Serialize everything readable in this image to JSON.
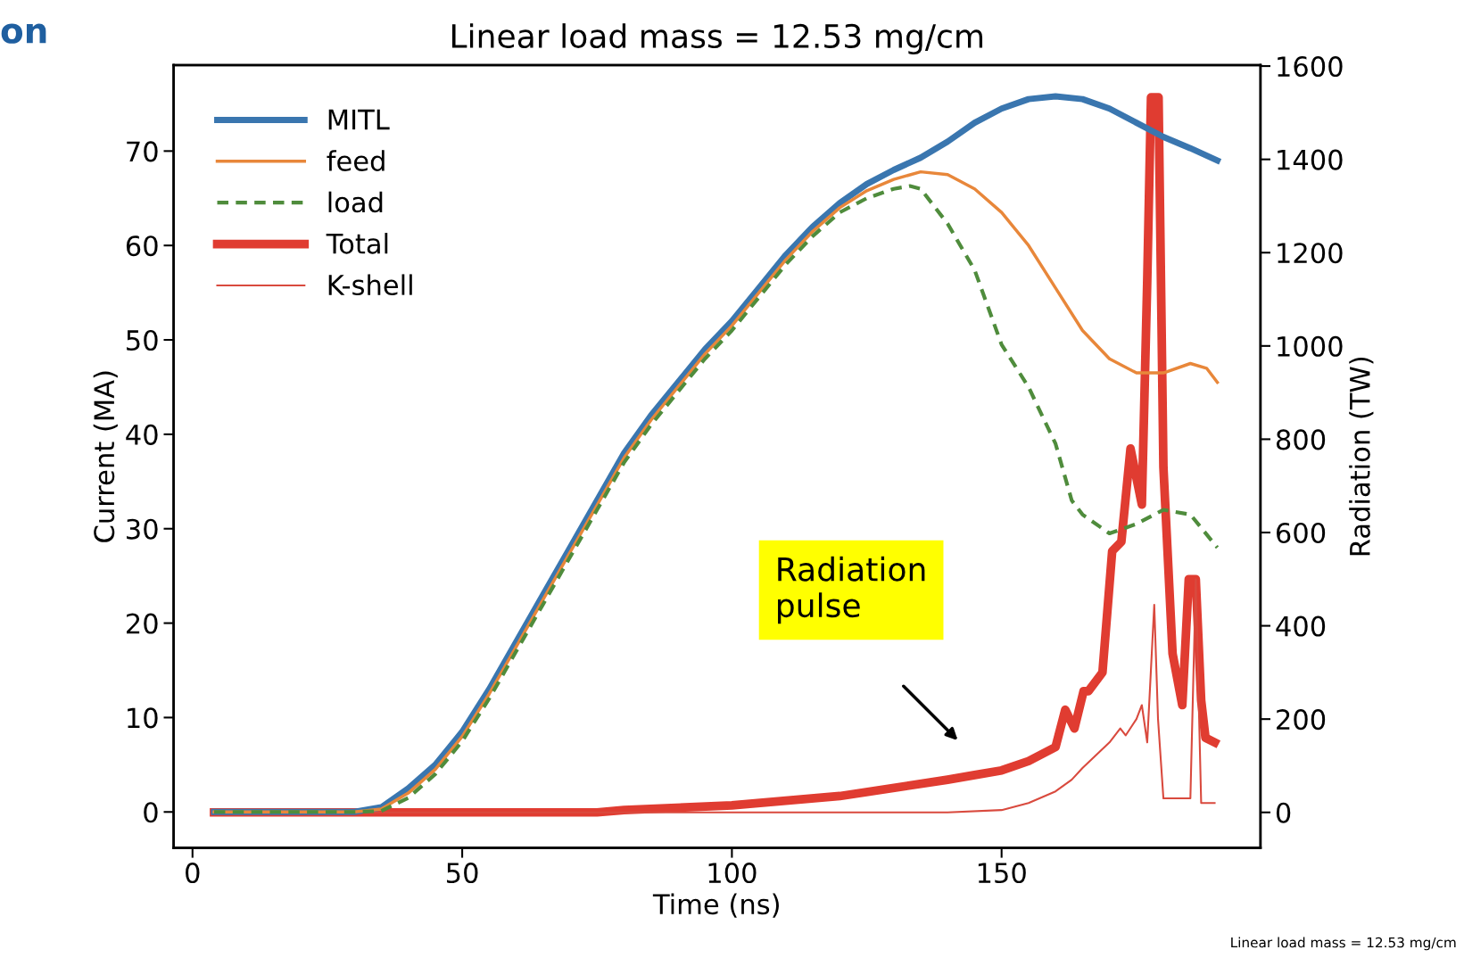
{
  "chart_data": {
    "type": "line",
    "title": "Linear load mass = 12.53 mg/cm",
    "xlabel": "Time (ns)",
    "ylabel": "Current (MA)",
    "y2label": "Radiation (TW)",
    "xlim": [
      -3.5,
      198
    ],
    "xticks": [
      0,
      50,
      100,
      150
    ],
    "ylim": [
      -3.8,
      79.1
    ],
    "yticks": [
      0,
      10,
      20,
      30,
      40,
      50,
      60,
      70
    ],
    "y2lim": [
      -76,
      1602
    ],
    "y2ticks": [
      0,
      200,
      400,
      600,
      800,
      1000,
      1200,
      1400,
      1600
    ],
    "grid": false,
    "legend": "top left",
    "series": [
      {
        "name": "MITL",
        "color": "#3a76af",
        "line_style": "solid",
        "x": [
          4,
          30,
          35,
          40,
          45,
          50,
          55,
          60,
          65,
          70,
          75,
          80,
          85,
          90,
          95,
          100,
          105,
          110,
          115,
          120,
          125,
          130,
          135,
          140,
          145,
          150,
          155,
          160,
          165,
          170,
          175,
          180,
          185,
          190
        ],
        "values": [
          0,
          0,
          0.5,
          2.5,
          5,
          8.5,
          13,
          18,
          23,
          28,
          33,
          38,
          42,
          45.5,
          49,
          52,
          55.5,
          59,
          62,
          64.5,
          66.5,
          68,
          69.3,
          71,
          73,
          74.5,
          75.5,
          75.8,
          75.5,
          74.5,
          73,
          71.5,
          70.3,
          69
        ]
      },
      {
        "name": "feed",
        "color": "#e8873a",
        "line_style": "solid",
        "x": [
          4,
          30,
          35,
          40,
          45,
          50,
          55,
          60,
          65,
          70,
          75,
          80,
          85,
          90,
          95,
          100,
          105,
          110,
          115,
          120,
          125,
          130,
          135,
          140,
          145,
          150,
          155,
          160,
          165,
          170,
          175,
          180,
          185,
          188,
          190
        ],
        "values": [
          0,
          0,
          0.3,
          2,
          4.5,
          8,
          12.5,
          17.5,
          22.5,
          27.5,
          32.5,
          37.5,
          41.5,
          45,
          48.5,
          51.5,
          55,
          58.5,
          61.5,
          64,
          65.8,
          67,
          67.8,
          67.5,
          66,
          63.5,
          60,
          55.5,
          51,
          48,
          46.5,
          46.5,
          47.5,
          47,
          45.5
        ]
      },
      {
        "name": "load",
        "color": "#4f8c3c",
        "line_style": "dashed",
        "x": [
          4,
          30,
          35,
          40,
          45,
          50,
          55,
          60,
          65,
          70,
          75,
          80,
          85,
          90,
          95,
          100,
          105,
          110,
          115,
          120,
          125,
          130,
          133,
          135,
          140,
          145,
          150,
          155,
          160,
          163,
          165,
          170,
          175,
          180,
          185,
          190
        ],
        "values": [
          0,
          0,
          0.1,
          1.5,
          4,
          7.5,
          12,
          17,
          22,
          27,
          32,
          37,
          41,
          44.5,
          48,
          51,
          54.5,
          58,
          61,
          63.5,
          65,
          66,
          66.3,
          66,
          62.3,
          57.4,
          49.5,
          45,
          39,
          33,
          31.5,
          29.5,
          30.5,
          32,
          31.5,
          28
        ]
      },
      {
        "name": "Total",
        "color": "#e03c31",
        "line_style": "solid",
        "axis": "y2",
        "x": [
          4,
          75,
          80,
          100,
          120,
          140,
          145,
          150,
          155,
          160,
          161.8,
          163.5,
          165.2,
          166.1,
          168.7,
          170.5,
          172.2,
          173.9,
          176,
          177,
          177.7,
          179.1,
          180,
          181.7,
          183.5,
          184.7,
          186,
          187,
          187.8,
          189.5
        ],
        "values": [
          0,
          0,
          5,
          15,
          35,
          70,
          80,
          90,
          110,
          140,
          220,
          180,
          260,
          260,
          300,
          560,
          580,
          780,
          660,
          1140,
          1533,
          1533,
          740,
          340,
          230,
          500,
          500,
          240,
          160,
          150
        ]
      },
      {
        "name": "K-shell",
        "color": "#d94a3e",
        "line_style": "solid",
        "axis": "y2",
        "x": [
          4,
          140,
          150,
          155,
          160,
          163,
          165,
          170,
          172,
          173,
          175,
          176,
          177,
          178.3,
          179,
          180,
          183,
          185,
          186,
          187,
          189.5
        ],
        "values": [
          0,
          0,
          5,
          20,
          45,
          70,
          95,
          150,
          180,
          165,
          200,
          230,
          150,
          445,
          200,
          30,
          30,
          30,
          500,
          20,
          20
        ]
      }
    ],
    "annotations": [
      "Radiation pulse",
      "on",
      "Linear load mass = 12.53 mg/cm"
    ]
  }
}
